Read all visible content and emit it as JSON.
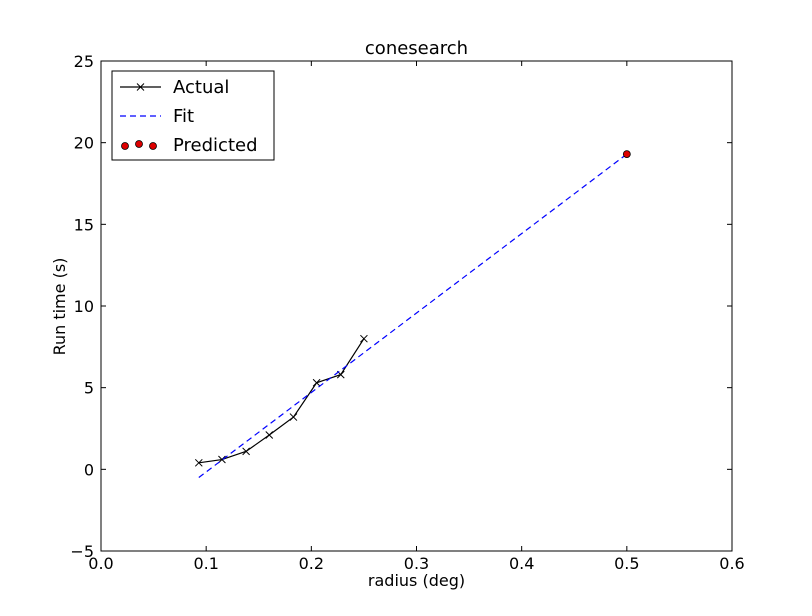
{
  "chart_data": {
    "type": "line",
    "title": "conesearch",
    "xlabel": "radius (deg)",
    "ylabel": "Run time (s)",
    "xlim": [
      0.0,
      0.6
    ],
    "ylim": [
      -5,
      25
    ],
    "x_ticks": [
      0.0,
      0.1,
      0.2,
      0.3,
      0.4,
      0.5,
      0.6
    ],
    "x_tick_labels": [
      "0.0",
      "0.1",
      "0.2",
      "0.3",
      "0.4",
      "0.5",
      "0.6"
    ],
    "y_ticks": [
      -5,
      0,
      5,
      10,
      15,
      20,
      25
    ],
    "y_tick_labels": [
      "−5",
      "0",
      "5",
      "10",
      "15",
      "20",
      "25"
    ],
    "grid": false,
    "legend": {
      "position": "top-left",
      "entries": [
        "Actual",
        "Fit",
        "Predicted"
      ]
    },
    "series": [
      {
        "name": "Actual",
        "kind": "line-marker",
        "color": "#000000",
        "marker": "x",
        "x": [
          0.093,
          0.115,
          0.138,
          0.16,
          0.183,
          0.205,
          0.228,
          0.25
        ],
        "y": [
          0.4,
          0.6,
          1.1,
          2.1,
          3.2,
          5.3,
          5.8,
          8.0
        ]
      },
      {
        "name": "Fit",
        "kind": "dashed-line",
        "color": "#0000ff",
        "x": [
          0.093,
          0.5
        ],
        "y": [
          -0.5,
          19.3
        ]
      },
      {
        "name": "Predicted",
        "kind": "scatter",
        "color": "#dd0000",
        "x": [
          0.5
        ],
        "y": [
          19.3
        ]
      }
    ]
  }
}
